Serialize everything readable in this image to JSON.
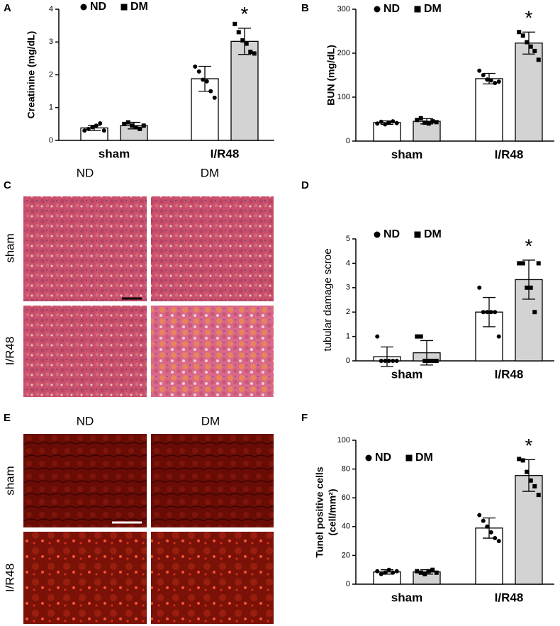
{
  "chart_data": [
    {
      "type": "bar",
      "panel": "A",
      "ylabel": "Creatinine (mg/dL)",
      "categories": [
        "sham",
        "I/R48"
      ],
      "series": [
        {
          "name": "ND",
          "color": "#ffffff",
          "marker": "circle",
          "values": [
            0.38,
            1.88
          ],
          "errors": [
            0.08,
            0.38
          ],
          "points": [
            [
              0.3,
              0.35,
              0.4,
              0.45,
              0.52,
              0.3
            ],
            [
              2.25,
              2.1,
              1.85,
              1.8,
              1.5,
              1.3
            ]
          ]
        },
        {
          "name": "DM",
          "color": "#d3d3d3",
          "marker": "square",
          "values": [
            0.45,
            3.02
          ],
          "errors": [
            0.1,
            0.4
          ],
          "points": [
            [
              0.5,
              0.55,
              0.45,
              0.4,
              0.35,
              0.45
            ],
            [
              3.55,
              3.3,
              3.05,
              2.95,
              2.7,
              2.65
            ]
          ]
        }
      ],
      "ylim": [
        0,
        4
      ],
      "yticks": [
        0,
        1,
        2,
        3,
        4
      ],
      "annotation": "*"
    },
    {
      "type": "bar",
      "panel": "B",
      "ylabel": "BUN (mg/dL)",
      "categories": [
        "sham",
        "I/R48"
      ],
      "series": [
        {
          "name": "ND",
          "color": "#ffffff",
          "marker": "circle",
          "values": [
            42,
            142
          ],
          "errors": [
            4,
            12
          ],
          "points": [
            [
              40,
              44,
              38,
              42,
              45,
              41
            ],
            [
              160,
              150,
              140,
              138,
              132,
              135
            ]
          ]
        },
        {
          "name": "DM",
          "color": "#d3d3d3",
          "marker": "square",
          "values": [
            45,
            223
          ],
          "errors": [
            6,
            25
          ],
          "points": [
            [
              48,
              52,
              42,
              40,
              45,
              43
            ],
            [
              248,
              240,
              225,
              215,
              205,
              185
            ]
          ]
        }
      ],
      "ylim": [
        0,
        300
      ],
      "yticks": [
        0,
        100,
        200,
        300
      ],
      "annotation": "*"
    },
    {
      "type": "bar",
      "panel": "D",
      "ylabel": "tubular damage scroe",
      "categories": [
        "sham",
        "I/R48"
      ],
      "series": [
        {
          "name": "ND",
          "color": "#ffffff",
          "marker": "circle",
          "values": [
            0.17,
            2.0
          ],
          "errors": [
            0.4,
            0.6
          ],
          "points": [
            [
              1,
              0,
              0,
              0,
              0,
              0
            ],
            [
              3,
              2,
              2,
              2,
              2,
              1
            ]
          ]
        },
        {
          "name": "DM",
          "color": "#d3d3d3",
          "marker": "square",
          "values": [
            0.33,
            3.33
          ],
          "errors": [
            0.5,
            0.8
          ],
          "points": [
            [
              1,
              1,
              0,
              0,
              0,
              0
            ],
            [
              4,
              4,
              3,
              3,
              2,
              4
            ]
          ]
        }
      ],
      "ylim": [
        0,
        5
      ],
      "yticks": [
        0,
        1,
        2,
        3,
        4,
        5
      ],
      "annotation": "*"
    },
    {
      "type": "bar",
      "panel": "F",
      "ylabel": [
        "Tunel positive cells",
        "(cell/mm²)"
      ],
      "categories": [
        "sham",
        "I/R48"
      ],
      "series": [
        {
          "name": "ND",
          "color": "#ffffff",
          "marker": "circle",
          "values": [
            8.5,
            39
          ],
          "errors": [
            1.5,
            7
          ],
          "points": [
            [
              9,
              7,
              8,
              10,
              8,
              9
            ],
            [
              48,
              44,
              40,
              36,
              32,
              30
            ]
          ]
        },
        {
          "name": "DM",
          "color": "#d3d3d3",
          "marker": "square",
          "values": [
            8.5,
            75.5
          ],
          "errors": [
            1.5,
            11
          ],
          "points": [
            [
              9,
              8,
              7,
              9,
              10,
              8
            ],
            [
              87,
              86,
              78,
              72,
              68,
              62
            ]
          ]
        }
      ],
      "ylim": [
        0,
        100
      ],
      "yticks": [
        0,
        20,
        40,
        60,
        80,
        100
      ],
      "annotation": "*"
    }
  ],
  "micrographs": [
    {
      "panel": "C",
      "columns": [
        "ND",
        "DM"
      ],
      "rows": [
        "sham",
        "I/R48"
      ]
    },
    {
      "panel": "E",
      "columns": [
        "ND",
        "DM"
      ],
      "rows": [
        "sham",
        "I/R48"
      ]
    }
  ]
}
